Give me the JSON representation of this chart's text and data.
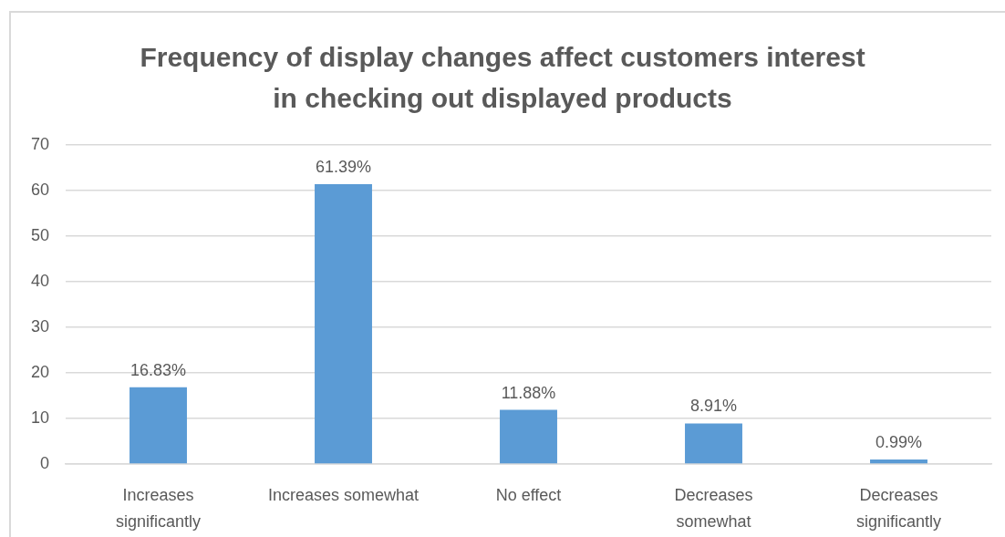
{
  "chart_data": {
    "type": "bar",
    "title": "Frequency of display changes affect customers interest in checking out displayed products",
    "categories": [
      "Increases significantly",
      "Increases somewhat",
      "No effect",
      "Decreases somewhat",
      "Decreases significantly"
    ],
    "values": [
      16.83,
      61.39,
      11.88,
      8.91,
      0.99
    ],
    "color": "#5b9bd5",
    "value_labels": [
      "16.83%",
      "61.39%",
      "11.88%",
      "8.91%",
      "0.99%"
    ],
    "ylim": [
      0,
      70
    ],
    "yticks": [
      0,
      10,
      20,
      30,
      40,
      50,
      60,
      70
    ],
    "grid": "y"
  }
}
